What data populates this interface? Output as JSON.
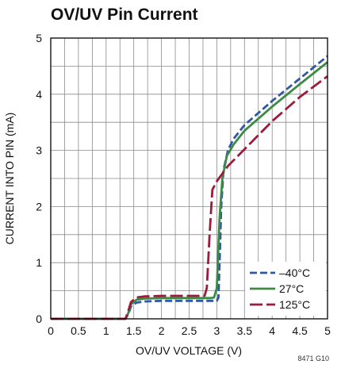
{
  "chart_data": {
    "type": "line",
    "title": "OV/UV Pin Current",
    "xlabel": "OV/UV VOLTAGE (V)",
    "ylabel": "CURRENT INTO PIN (mA)",
    "xlim": [
      0,
      5
    ],
    "ylim": [
      0,
      5
    ],
    "x_ticks": [
      0,
      0.5,
      1,
      1.5,
      2,
      2.5,
      3,
      3.5,
      4,
      4.5,
      5
    ],
    "x_tick_labels": [
      "0",
      "0.5",
      "1",
      "1.5",
      "2",
      "2.5",
      "3",
      "3.5",
      "4",
      "4.5",
      "5"
    ],
    "y_ticks": [
      0,
      1,
      2,
      3,
      4,
      5
    ],
    "y_tick_labels": [
      "0",
      "1",
      "2",
      "3",
      "4",
      "5"
    ],
    "grid": true,
    "legend_position": "bottom-right",
    "figure_id": "8471 G10",
    "series": [
      {
        "name": "–40°C",
        "color": "#2f56a8",
        "dash": "dashed",
        "x": [
          0,
          1.35,
          1.4,
          1.45,
          1.55,
          1.7,
          2.0,
          2.5,
          2.9,
          3.0,
          3.03,
          3.05,
          3.08,
          3.12,
          3.2,
          3.3,
          3.5,
          4.0,
          4.5,
          5.0
        ],
        "y": [
          0,
          0,
          0.08,
          0.22,
          0.29,
          0.31,
          0.32,
          0.32,
          0.32,
          0.32,
          0.38,
          1.0,
          2.0,
          2.65,
          3.0,
          3.2,
          3.45,
          3.88,
          4.28,
          4.68
        ]
      },
      {
        "name": "27°C",
        "color": "#3d8a45",
        "dash": "solid",
        "x": [
          0,
          1.35,
          1.4,
          1.45,
          1.55,
          1.7,
          2.0,
          2.5,
          2.9,
          2.95,
          3.0,
          3.05,
          3.1,
          3.18,
          3.3,
          3.5,
          4.0,
          4.5,
          5.0
        ],
        "y": [
          0,
          0,
          0.1,
          0.26,
          0.34,
          0.36,
          0.37,
          0.37,
          0.37,
          0.38,
          0.55,
          1.8,
          2.5,
          2.9,
          3.1,
          3.35,
          3.78,
          4.18,
          4.57
        ]
      },
      {
        "name": "125°C",
        "color": "#9b1b3b",
        "dash": "long-dash",
        "x": [
          0,
          1.35,
          1.4,
          1.45,
          1.55,
          1.7,
          2.0,
          2.5,
          2.78,
          2.82,
          2.87,
          2.92,
          3.0,
          3.2,
          3.5,
          4.0,
          4.5,
          5.0
        ],
        "y": [
          0,
          0,
          0.14,
          0.3,
          0.38,
          0.4,
          0.41,
          0.41,
          0.41,
          0.55,
          1.5,
          2.3,
          2.45,
          2.72,
          3.02,
          3.52,
          3.95,
          4.32
        ]
      }
    ]
  }
}
